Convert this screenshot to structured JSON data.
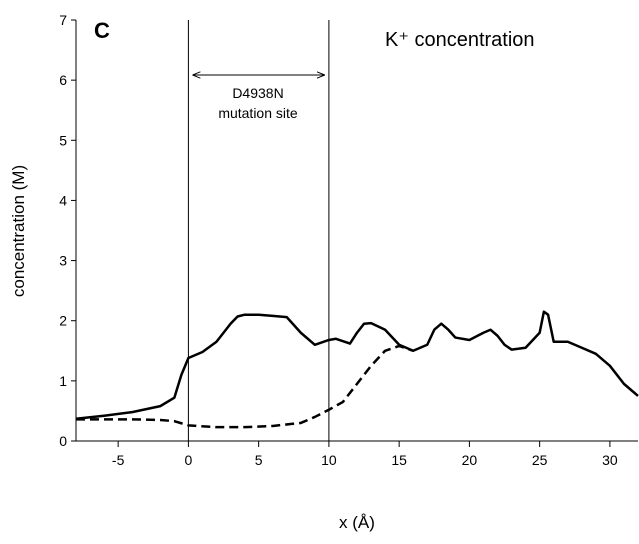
{
  "chart_data": {
    "type": "line",
    "title": "C",
    "annotation": "K⁺ concentration",
    "region_label": [
      "D4938N",
      "mutation site"
    ],
    "xlabel": "x (Å)",
    "ylabel": "concentration (M)",
    "xlim": [
      -8,
      32
    ],
    "ylim": [
      0,
      7
    ],
    "xticks": [
      -5,
      0,
      5,
      10,
      15,
      20,
      25,
      30
    ],
    "yticks": [
      0,
      1,
      2,
      3,
      4,
      5,
      6,
      7
    ],
    "vlines": [
      0,
      10
    ],
    "grid": false,
    "series": [
      {
        "color": "#000000",
        "dash": false,
        "x": [
          -8,
          -6,
          -4,
          -2,
          -1,
          -0.5,
          0,
          1,
          2,
          3,
          3.5,
          4,
          5,
          6,
          7,
          8,
          9,
          10,
          10.5,
          11,
          11.5,
          12,
          12.5,
          13,
          14,
          15,
          16,
          17,
          17.5,
          18,
          18.5,
          19,
          20,
          21,
          21.5,
          22,
          22.5,
          23,
          24,
          25,
          25.3,
          25.6,
          26,
          27,
          28,
          29,
          30,
          31,
          32
        ],
        "values": [
          0.37,
          0.42,
          0.48,
          0.58,
          0.72,
          1.1,
          1.38,
          1.48,
          1.65,
          1.95,
          2.07,
          2.1,
          2.1,
          2.08,
          2.06,
          1.8,
          1.6,
          1.68,
          1.7,
          1.66,
          1.62,
          1.8,
          1.95,
          1.96,
          1.85,
          1.6,
          1.5,
          1.6,
          1.85,
          1.95,
          1.85,
          1.72,
          1.68,
          1.8,
          1.85,
          1.75,
          1.6,
          1.52,
          1.55,
          1.8,
          2.15,
          2.1,
          1.65,
          1.65,
          1.55,
          1.45,
          1.25,
          0.95,
          0.75
        ]
      },
      {
        "color": "#000000",
        "dash": true,
        "x": [
          -8,
          -4,
          -2,
          -1,
          0,
          2,
          4,
          6,
          8,
          9,
          10,
          11,
          12,
          13,
          14,
          15,
          16
        ],
        "values": [
          0.36,
          0.36,
          0.35,
          0.33,
          0.26,
          0.23,
          0.23,
          0.25,
          0.3,
          0.4,
          0.52,
          0.65,
          0.95,
          1.25,
          1.5,
          1.58,
          1.5
        ]
      }
    ]
  }
}
